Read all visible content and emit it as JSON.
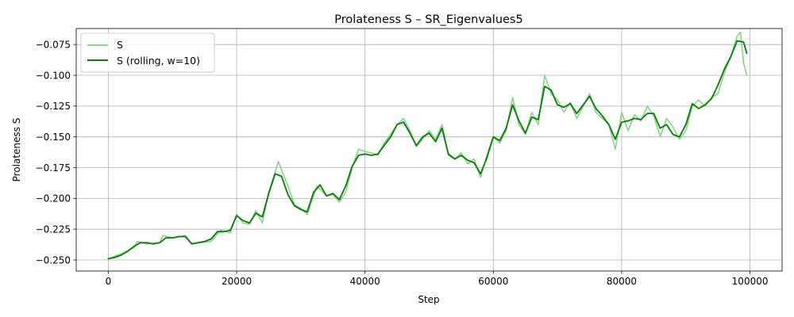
{
  "chart_data": {
    "type": "line",
    "title": "Prolateness S – SR_Eigenvalues5",
    "xlabel": "Step",
    "ylabel": "Prolateness S",
    "xlim": [
      -5000,
      105000
    ],
    "ylim": [
      -0.259,
      -0.062
    ],
    "xticks": [
      0,
      20000,
      40000,
      60000,
      80000,
      100000
    ],
    "xtick_labels": [
      "0",
      "20000",
      "40000",
      "60000",
      "80000",
      "100000"
    ],
    "yticks": [
      -0.25,
      -0.225,
      -0.2,
      -0.175,
      -0.15,
      -0.125,
      -0.1,
      -0.075
    ],
    "ytick_labels": [
      "−0.250",
      "−0.225",
      "−0.200",
      "−0.175",
      "−0.150",
      "−0.125",
      "−0.100",
      "−0.075"
    ],
    "grid": true,
    "legend_position": "upper left",
    "series": [
      {
        "name": "S",
        "color": "#8fcf8f",
        "x": [
          0,
          2000,
          4000,
          4500,
          6000,
          8000,
          8500,
          10000,
          12000,
          13000,
          14000,
          16000,
          17500,
          19000,
          20000,
          21000,
          22000,
          23000,
          24000,
          25000,
          26500,
          27000,
          28000,
          29000,
          30000,
          31000,
          32500,
          34000,
          35000,
          36000,
          37000,
          38000,
          39000,
          40000,
          41000,
          42000,
          43000,
          44000,
          45000,
          46000,
          47000,
          48000,
          49000,
          50000,
          51000,
          52000,
          53000,
          54000,
          55000,
          56000,
          57000,
          58000,
          59000,
          60000,
          61000,
          62000,
          63000,
          64000,
          65000,
          66000,
          67000,
          68000,
          69000,
          70000,
          71000,
          72000,
          73000,
          74000,
          75000,
          76000,
          77000,
          78000,
          79000,
          80000,
          81000,
          82000,
          83000,
          84000,
          85000,
          86000,
          87000,
          88000,
          89000,
          90000,
          91000,
          92000,
          93000,
          94000,
          95000,
          96000,
          97000,
          98000,
          98500,
          99000,
          99500
        ],
        "y": [
          -0.249,
          -0.245,
          -0.24,
          -0.235,
          -0.237,
          -0.236,
          -0.23,
          -0.232,
          -0.23,
          -0.237,
          -0.236,
          -0.235,
          -0.226,
          -0.228,
          -0.213,
          -0.22,
          -0.221,
          -0.21,
          -0.22,
          -0.195,
          -0.17,
          -0.177,
          -0.19,
          -0.205,
          -0.208,
          -0.213,
          -0.19,
          -0.198,
          -0.197,
          -0.203,
          -0.195,
          -0.175,
          -0.16,
          -0.162,
          -0.163,
          -0.165,
          -0.155,
          -0.148,
          -0.14,
          -0.135,
          -0.145,
          -0.158,
          -0.152,
          -0.145,
          -0.152,
          -0.14,
          -0.165,
          -0.168,
          -0.163,
          -0.172,
          -0.168,
          -0.183,
          -0.165,
          -0.15,
          -0.155,
          -0.145,
          -0.118,
          -0.14,
          -0.148,
          -0.13,
          -0.14,
          -0.1,
          -0.115,
          -0.12,
          -0.13,
          -0.122,
          -0.135,
          -0.125,
          -0.115,
          -0.13,
          -0.135,
          -0.14,
          -0.16,
          -0.13,
          -0.145,
          -0.132,
          -0.137,
          -0.125,
          -0.133,
          -0.15,
          -0.135,
          -0.142,
          -0.152,
          -0.145,
          -0.125,
          -0.12,
          -0.125,
          -0.118,
          -0.115,
          -0.098,
          -0.085,
          -0.068,
          -0.065,
          -0.09,
          -0.1
        ]
      },
      {
        "name": "S (rolling, w=10)",
        "color": "#008000",
        "x": [
          0,
          1000,
          2000,
          3000,
          4000,
          5000,
          6000,
          7000,
          8000,
          9000,
          10000,
          11000,
          12000,
          13000,
          14000,
          15000,
          16000,
          17000,
          18000,
          19000,
          20000,
          21000,
          22000,
          23000,
          24000,
          25000,
          26000,
          27000,
          28000,
          29000,
          30000,
          31000,
          32000,
          33000,
          34000,
          35000,
          36000,
          37000,
          38000,
          39000,
          40000,
          41000,
          42000,
          43000,
          44000,
          45000,
          46000,
          47000,
          48000,
          49000,
          50000,
          51000,
          52000,
          53000,
          54000,
          55000,
          56000,
          57000,
          58000,
          59000,
          60000,
          61000,
          62000,
          63000,
          64000,
          65000,
          66000,
          67000,
          68000,
          69000,
          70000,
          71000,
          72000,
          73000,
          74000,
          75000,
          76000,
          77000,
          78000,
          79000,
          80000,
          81000,
          82000,
          83000,
          84000,
          85000,
          86000,
          87000,
          88000,
          89000,
          90000,
          91000,
          92000,
          93000,
          94000,
          95000,
          96000,
          97000,
          98000,
          99000,
          99500
        ],
        "y": [
          -0.249,
          -0.248,
          -0.246,
          -0.243,
          -0.239,
          -0.236,
          -0.236,
          -0.237,
          -0.236,
          -0.232,
          -0.232,
          -0.231,
          -0.231,
          -0.237,
          -0.236,
          -0.235,
          -0.233,
          -0.227,
          -0.227,
          -0.226,
          -0.214,
          -0.218,
          -0.22,
          -0.212,
          -0.215,
          -0.196,
          -0.18,
          -0.182,
          -0.197,
          -0.206,
          -0.209,
          -0.211,
          -0.195,
          -0.189,
          -0.198,
          -0.196,
          -0.201,
          -0.19,
          -0.174,
          -0.165,
          -0.164,
          -0.165,
          -0.164,
          -0.157,
          -0.15,
          -0.14,
          -0.138,
          -0.147,
          -0.157,
          -0.15,
          -0.147,
          -0.154,
          -0.143,
          -0.164,
          -0.168,
          -0.165,
          -0.169,
          -0.171,
          -0.18,
          -0.167,
          -0.15,
          -0.153,
          -0.143,
          -0.124,
          -0.137,
          -0.147,
          -0.134,
          -0.136,
          -0.109,
          -0.112,
          -0.124,
          -0.126,
          -0.123,
          -0.131,
          -0.124,
          -0.117,
          -0.127,
          -0.133,
          -0.14,
          -0.152,
          -0.138,
          -0.137,
          -0.135,
          -0.136,
          -0.131,
          -0.131,
          -0.143,
          -0.14,
          -0.148,
          -0.15,
          -0.14,
          -0.123,
          -0.127,
          -0.124,
          -0.119,
          -0.108,
          -0.095,
          -0.085,
          -0.072,
          -0.073,
          -0.082
        ]
      }
    ]
  }
}
